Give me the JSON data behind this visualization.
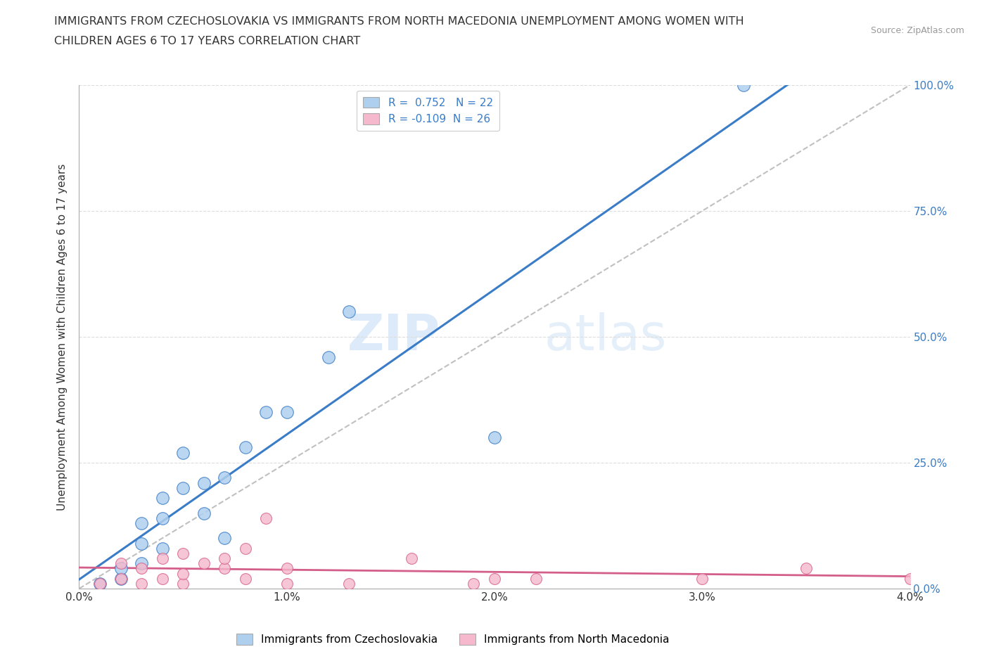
{
  "title_line1": "IMMIGRANTS FROM CZECHOSLOVAKIA VS IMMIGRANTS FROM NORTH MACEDONIA UNEMPLOYMENT AMONG WOMEN WITH",
  "title_line2": "CHILDREN AGES 6 TO 17 YEARS CORRELATION CHART",
  "source": "Source: ZipAtlas.com",
  "ylabel_label": "Unemployment Among Women with Children Ages 6 to 17 years",
  "legend1_label": "Immigrants from Czechoslovakia",
  "legend2_label": "Immigrants from North Macedonia",
  "r1": 0.752,
  "n1": 22,
  "r2": -0.109,
  "n2": 26,
  "color1": "#aecfee",
  "color2": "#f5b8cc",
  "line1_color": "#3a7cc7",
  "line2_color": "#d45e8a",
  "diag_color": "#c0c0c0",
  "background": "#ffffff",
  "grid_color": "#dddddd",
  "watermark_zip": "ZIP",
  "watermark_atlas": "atlas",
  "scatter1_x": [
    0.001,
    0.002,
    0.002,
    0.003,
    0.003,
    0.003,
    0.004,
    0.004,
    0.004,
    0.005,
    0.005,
    0.006,
    0.006,
    0.007,
    0.007,
    0.008,
    0.009,
    0.01,
    0.012,
    0.013,
    0.02,
    0.032
  ],
  "scatter1_y": [
    0.01,
    0.02,
    0.04,
    0.05,
    0.09,
    0.13,
    0.08,
    0.14,
    0.18,
    0.2,
    0.27,
    0.15,
    0.21,
    0.1,
    0.22,
    0.28,
    0.35,
    0.35,
    0.46,
    0.55,
    0.3,
    1.0
  ],
  "scatter2_x": [
    0.001,
    0.002,
    0.002,
    0.003,
    0.003,
    0.004,
    0.004,
    0.005,
    0.005,
    0.005,
    0.006,
    0.007,
    0.007,
    0.008,
    0.008,
    0.009,
    0.01,
    0.01,
    0.013,
    0.016,
    0.019,
    0.02,
    0.022,
    0.03,
    0.035,
    0.04
  ],
  "scatter2_y": [
    0.01,
    0.02,
    0.05,
    0.01,
    0.04,
    0.02,
    0.06,
    0.01,
    0.03,
    0.07,
    0.05,
    0.04,
    0.06,
    0.08,
    0.02,
    0.14,
    0.01,
    0.04,
    0.01,
    0.06,
    0.01,
    0.02,
    0.02,
    0.02,
    0.04,
    0.02
  ],
  "xlim": [
    0,
    0.04
  ],
  "ylim": [
    0,
    1.0
  ],
  "xticks": [
    0.0,
    0.01,
    0.02,
    0.03,
    0.04
  ],
  "xtick_labels": [
    "0.0%",
    "1.0%",
    "2.0%",
    "3.0%",
    "4.0%"
  ],
  "yticks": [
    0.0,
    0.25,
    0.5,
    0.75,
    1.0
  ],
  "ytick_labels": [
    "0.0%",
    "25.0%",
    "50.0%",
    "75.0%",
    "100.0%"
  ]
}
